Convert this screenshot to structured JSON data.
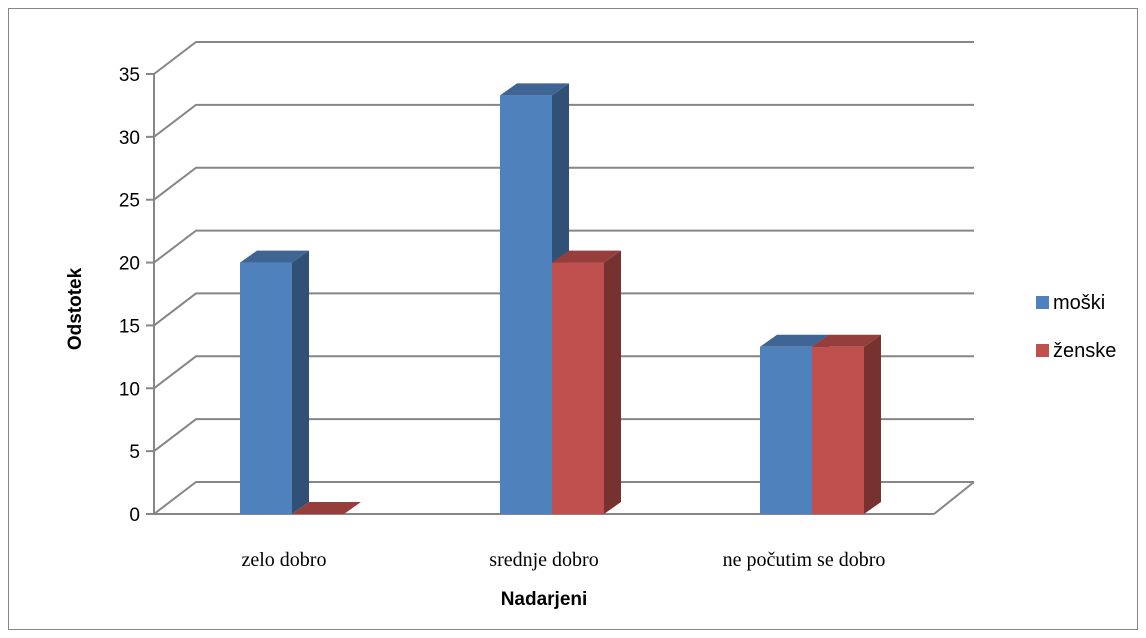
{
  "chart_data": {
    "type": "bar",
    "three_d": true,
    "title": "",
    "xlabel": "Nadarjeni",
    "ylabel": "Odstotek",
    "categories": [
      "zelo dobro",
      "srednje dobro",
      "ne počutim se dobro"
    ],
    "series": [
      {
        "name": "moški",
        "color": "#4F81BD",
        "values": [
          20,
          33.3,
          13.3
        ]
      },
      {
        "name": "ženske",
        "color": "#C0504D",
        "values": [
          0,
          20,
          13.3
        ]
      }
    ],
    "ylim": [
      0,
      35
    ],
    "yticks": [
      "0",
      "5",
      "10",
      "15",
      "20",
      "25",
      "30",
      "35"
    ],
    "grid": true,
    "legend_position": "right"
  }
}
